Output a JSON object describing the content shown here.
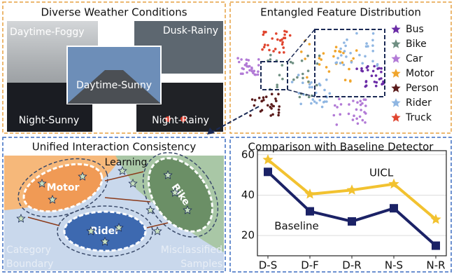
{
  "panels": {
    "weather": {
      "title": "Diverse Weather Conditions",
      "images": [
        "Daytime-Foggy",
        "Dusk-Rainy",
        "Daytime-Sunny",
        "Night-Sunny",
        "Night-Rainy"
      ]
    },
    "features": {
      "title": "Entangled Feature Distribution",
      "legend": [
        {
          "name": "Bus",
          "color": "#6a2ca6"
        },
        {
          "name": "Bike",
          "color": "#6f8f82"
        },
        {
          "name": "Car",
          "color": "#b27ad6"
        },
        {
          "name": "Motor",
          "color": "#f0a52c"
        },
        {
          "name": "Person",
          "color": "#5a1b1b"
        },
        {
          "name": "Rider",
          "color": "#8fb6e2"
        },
        {
          "name": "Truck",
          "color": "#e0452f"
        }
      ]
    },
    "interaction": {
      "title": "Unified Interaction Consistency",
      "learning": "Learning",
      "motor": "Motor",
      "bike": "Bike",
      "rider": "Rider",
      "boundary": [
        "Category",
        "Boundary"
      ],
      "misclassified": [
        "Misclassified",
        "Samples"
      ]
    }
  },
  "chart_data": {
    "type": "line",
    "title": "Comparison with Baseline Detector",
    "categories": [
      "D-S",
      "D-F",
      "D-R",
      "N-S",
      "N-R"
    ],
    "series": [
      {
        "name": "UICL",
        "color": "#f2c230",
        "marker": "star",
        "values": [
          57.5,
          40.5,
          42.5,
          45.5,
          28
        ]
      },
      {
        "name": "Baseline",
        "color": "#1b2266",
        "marker": "square",
        "values": [
          51.5,
          32,
          27,
          33.5,
          15
        ]
      }
    ],
    "ylim": [
      10,
      62
    ],
    "yticks": [
      20,
      40,
      60
    ],
    "grid": true
  }
}
